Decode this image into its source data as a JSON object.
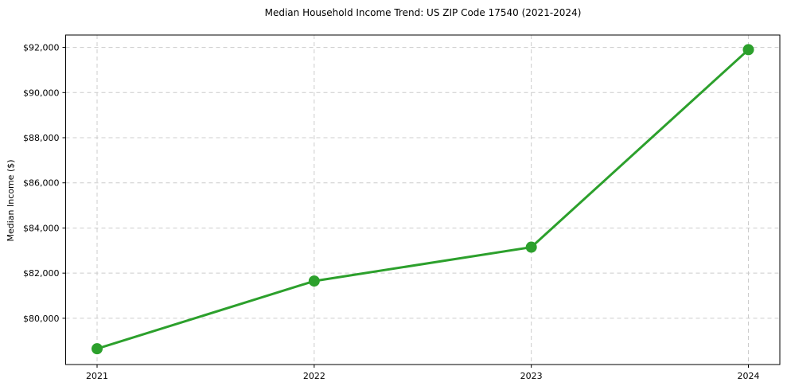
{
  "figure": {
    "background": "#ffffff",
    "spine_color": "#000000"
  },
  "chart_data": {
    "type": "line",
    "title": "Median Household Income Trend: US ZIP Code 17540 (2021-2024)",
    "xlabel": "",
    "ylabel": "Median Income ($)",
    "categories": [
      "2021",
      "2022",
      "2023",
      "2024"
    ],
    "series": [
      {
        "name": "median-household-income",
        "values": [
          78650,
          81650,
          83150,
          91900
        ],
        "color": "#2ca02c",
        "marker": "circle",
        "marker_size": 7,
        "line_width": 3
      }
    ],
    "y_ticks": [
      80000,
      82000,
      84000,
      86000,
      88000,
      90000,
      92000
    ],
    "y_tick_labels": [
      "$80,000",
      "$82,000",
      "$84,000",
      "$86,000",
      "$88,000",
      "$90,000",
      "$92,000"
    ],
    "ylim": [
      77950,
      92550
    ],
    "grid": true,
    "grid_style": "dashed",
    "grid_color": "#cccccc",
    "legend_position": "none",
    "tick_color": "#000000"
  }
}
